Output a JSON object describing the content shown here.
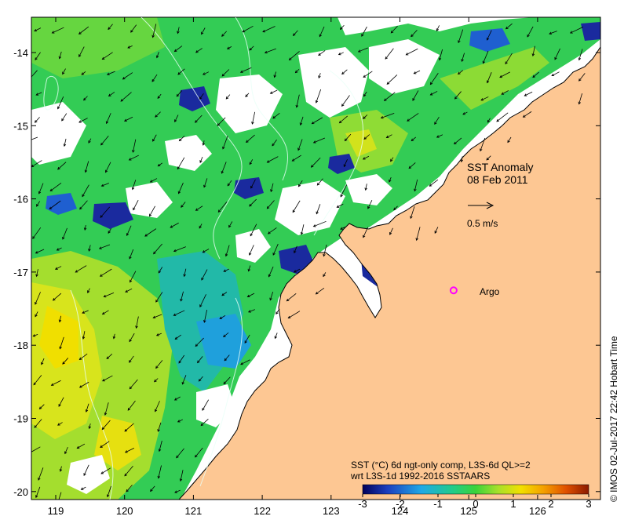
{
  "title": {
    "line1": "SST Anomaly",
    "line2": "08 Feb 2011"
  },
  "scale_vector": {
    "label": "0.5 m/s"
  },
  "argo": {
    "label": "Argo",
    "lon": 124.78,
    "lat": -17.25,
    "color": "#ff00ff"
  },
  "colorbar": {
    "caption_line1": "SST (°C) 6d ngt-only comp, L3S-6d QL>=2",
    "caption_line2": "wrt L3S-1d 1992-2016 SSTAARS",
    "min": -3,
    "max": 3,
    "tick_labels": [
      "-3",
      "-2",
      "-1",
      "0",
      "1",
      "2",
      "3"
    ],
    "stops": [
      "#00005a",
      "#1c3fbf",
      "#1fa9e6",
      "#22cc88",
      "#3ad33a",
      "#a8e02a",
      "#f2e000",
      "#f4a000",
      "#e05000",
      "#8b1a00"
    ]
  },
  "axes": {
    "lon_ticks": [
      "119",
      "120",
      "121",
      "122",
      "123",
      "124",
      "125",
      "126"
    ],
    "lat_ticks": [
      "-14",
      "-15",
      "-16",
      "-17",
      "-18",
      "-19",
      "-20"
    ]
  },
  "credit": "© IMOS 02-Jul-2017 22:42 Hobart Time",
  "colors": {
    "land": "#fdc793",
    "no_data": "#ffffff",
    "frame": "#000000"
  }
}
